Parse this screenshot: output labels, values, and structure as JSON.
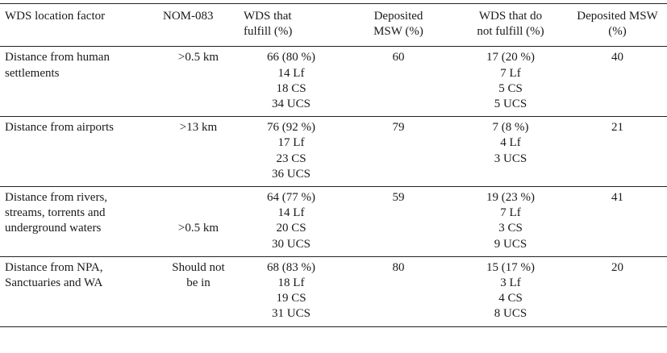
{
  "headers": [
    "WDS location factor",
    "NOM-083",
    "WDS that fulfill (%)",
    "Deposited MSW (%)",
    "WDS that do not fulfill (%)",
    "Deposited MSW (%)"
  ],
  "header_lines": [
    [
      "WDS location factor"
    ],
    [
      "NOM-083"
    ],
    [
      "WDS that",
      "fulfill (%)"
    ],
    [
      "Deposited",
      "MSW (%)"
    ],
    [
      "WDS that do",
      "not fulfill (%)"
    ],
    [
      "Deposited MSW",
      "(%)"
    ]
  ],
  "rows": [
    {
      "factor_lines": [
        "Distance from human",
        "settlements"
      ],
      "nom": [
        ">0.5 km"
      ],
      "fulfill": [
        "66 (80 %)",
        "14 Lf",
        "18 CS",
        "34 UCS"
      ],
      "deposited_fulfill": "60",
      "not_fulfill": [
        "17 (20 %)",
        "7 Lf",
        "5 CS",
        "5 UCS"
      ],
      "deposited_not_fulfill": "40"
    },
    {
      "factor_lines": [
        "Distance from airports"
      ],
      "nom": [
        ">13 km"
      ],
      "fulfill": [
        "76 (92 %)",
        "17 Lf",
        "23 CS",
        "36 UCS"
      ],
      "deposited_fulfill": "79",
      "not_fulfill": [
        "7 (8 %)",
        "4 Lf",
        "3 UCS"
      ],
      "deposited_not_fulfill": "21"
    },
    {
      "factor_lines": [
        "Distance from rivers,",
        "streams, torrents and",
        "underground waters"
      ],
      "nom": [
        "",
        "",
        ">0.5 km"
      ],
      "fulfill": [
        "64 (77 %)",
        "14 Lf",
        "20 CS",
        "30 UCS"
      ],
      "deposited_fulfill": "59",
      "not_fulfill": [
        "19 (23 %)",
        "7 Lf",
        "3 CS",
        "9 UCS"
      ],
      "deposited_not_fulfill": "41"
    },
    {
      "factor_lines": [
        "Distance from NPA,",
        "Sanctuaries and WA"
      ],
      "nom": [
        "Should not",
        "be in"
      ],
      "fulfill": [
        "68 (83 %)",
        "18 Lf",
        "19 CS",
        "31 UCS"
      ],
      "deposited_fulfill": "80",
      "not_fulfill": [
        "15 (17 %)",
        "3 Lf",
        "4 CS",
        "8 UCS"
      ],
      "deposited_not_fulfill": "20"
    }
  ]
}
